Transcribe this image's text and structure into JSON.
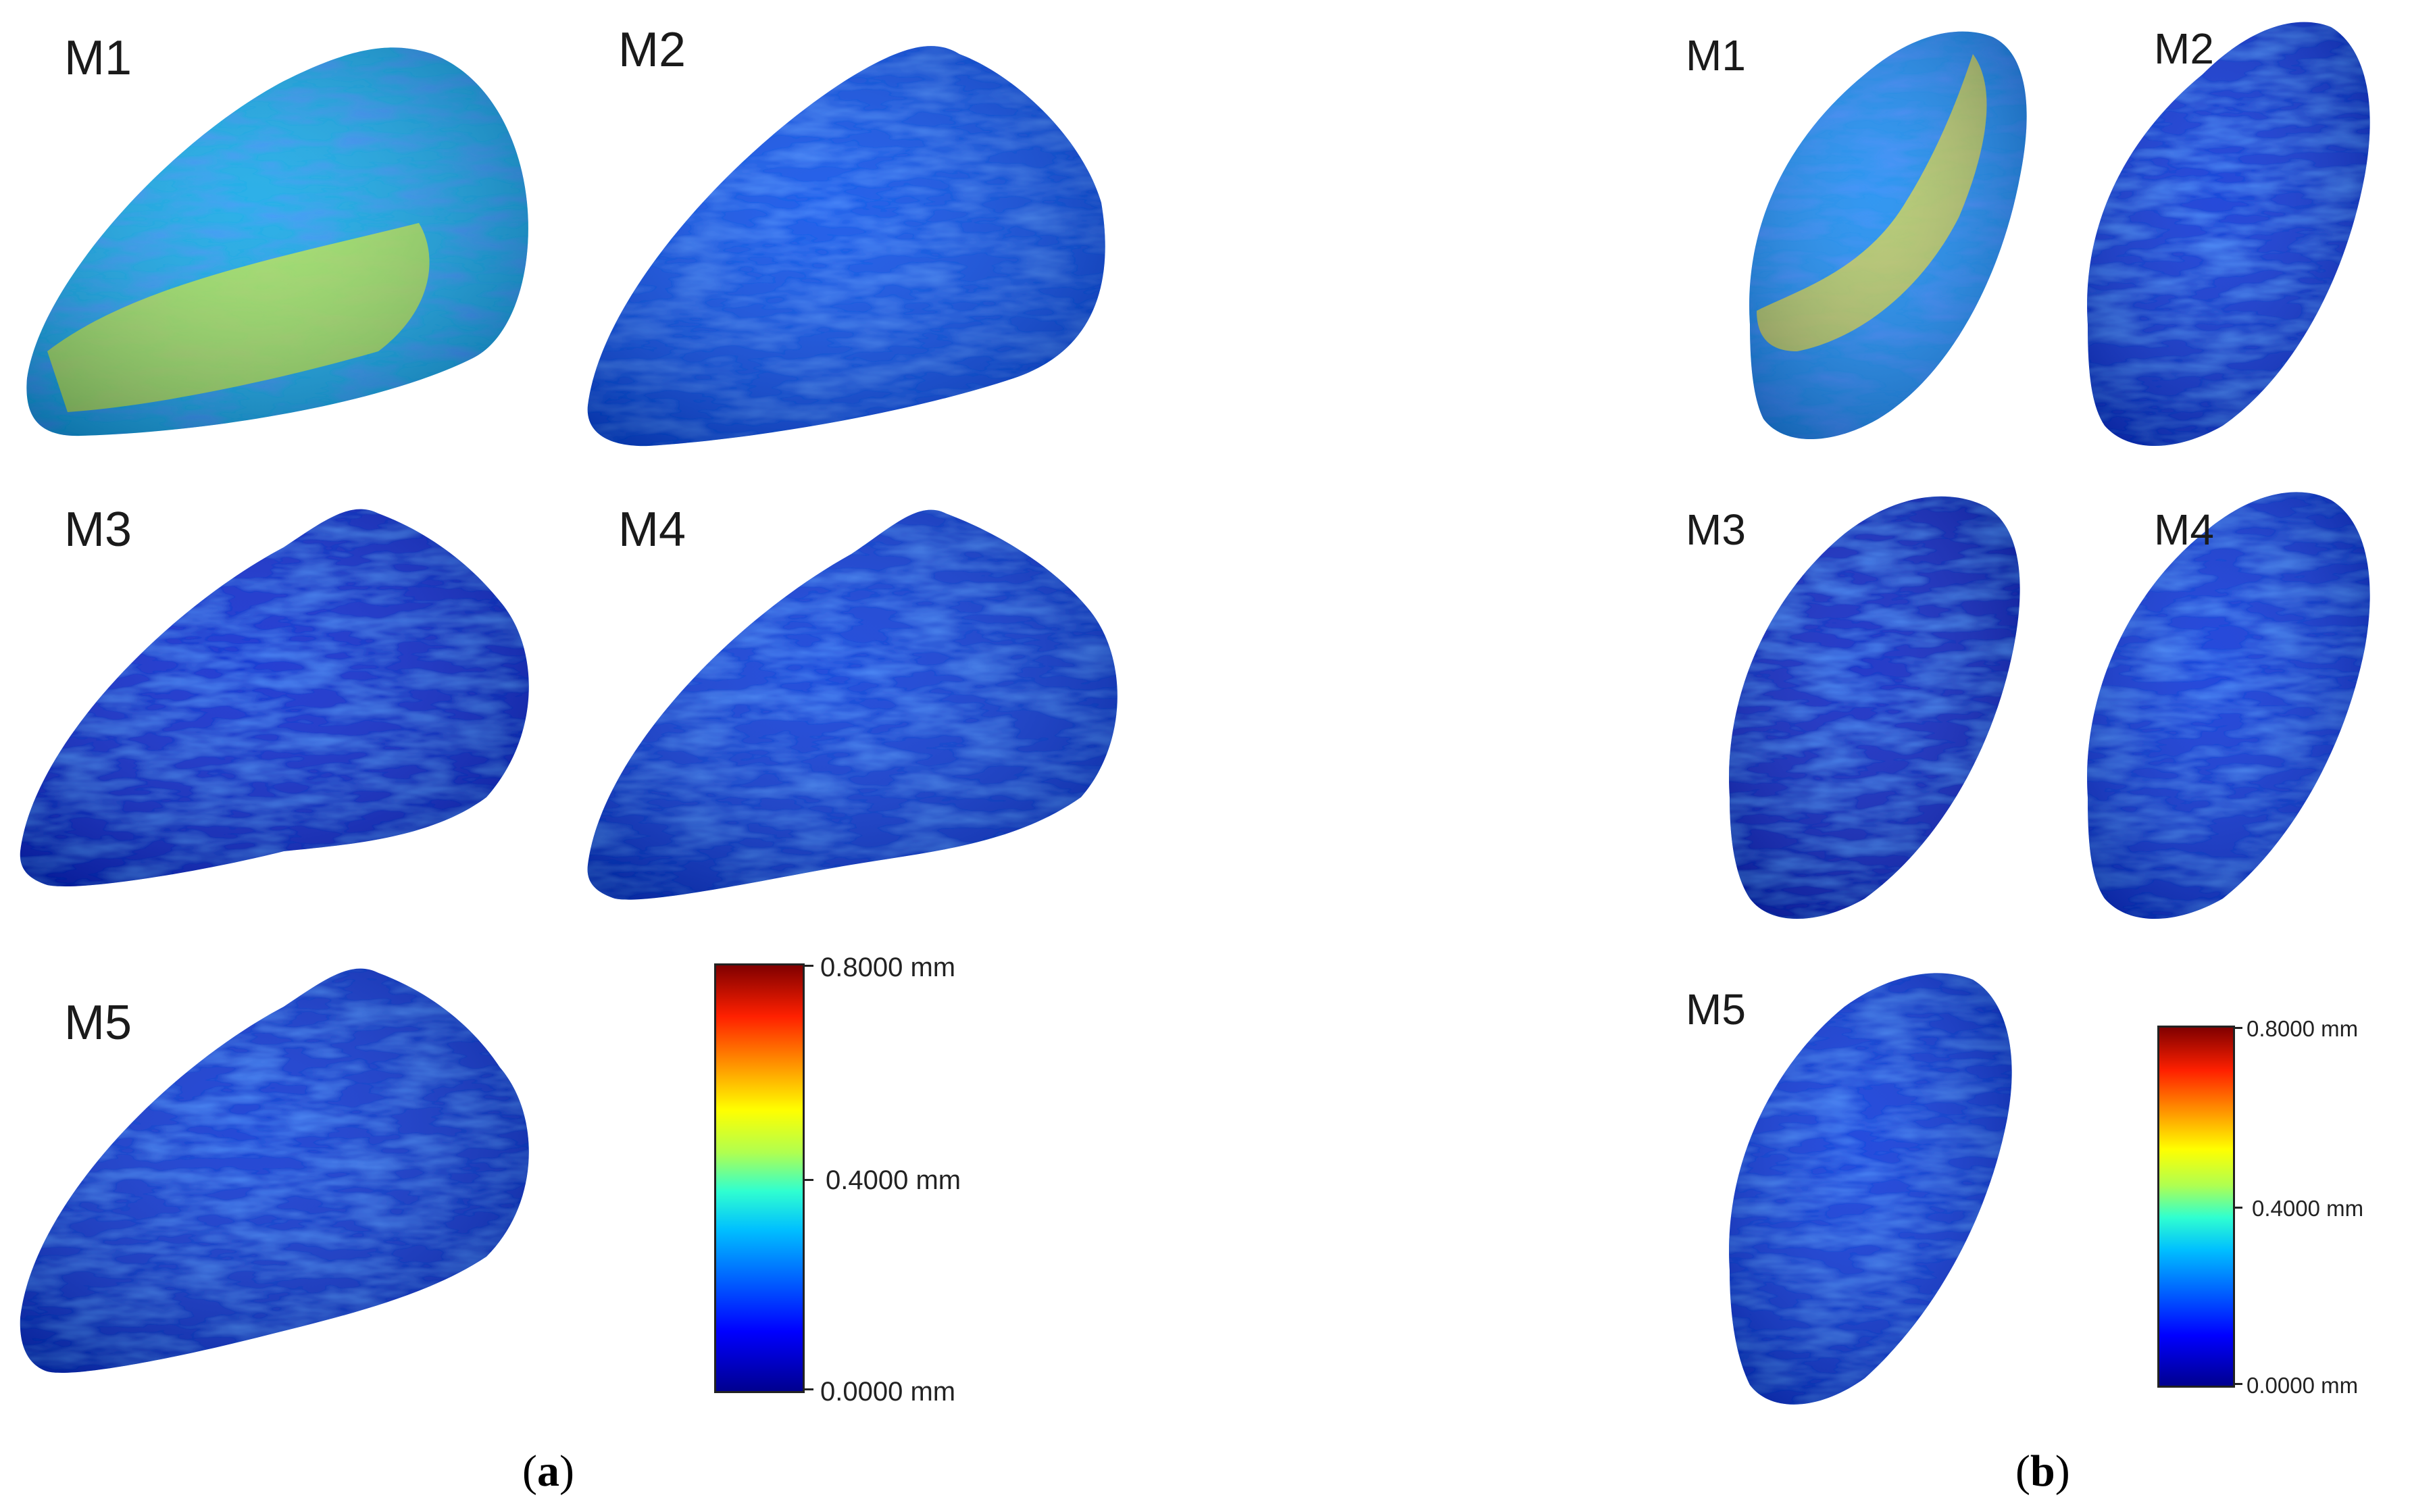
{
  "panel_a": {
    "caption_letter": "a",
    "models": [
      {
        "label": "M1",
        "color": "#19a8e6",
        "accent": "#c8f03a"
      },
      {
        "label": "M2",
        "color": "#1050e8",
        "accent": "#3ac8f0"
      },
      {
        "label": "M3",
        "color": "#0a2ccf",
        "accent": "#1e6cf0"
      },
      {
        "label": "M4",
        "color": "#0c3ad8",
        "accent": "#2a8cf4"
      },
      {
        "label": "M5",
        "color": "#0b34d2",
        "accent": "#2a86f2"
      }
    ],
    "scale": {
      "max": "0.8000 mm",
      "mid": "0.4000 mm",
      "min": "0.0000 mm"
    }
  },
  "panel_b": {
    "caption_letter": "b",
    "models": [
      {
        "label": "M1",
        "color": "#1a8cf0",
        "accent": "#f0e030"
      },
      {
        "label": "M2",
        "color": "#0a34d6",
        "accent": "#2a9af4"
      },
      {
        "label": "M3",
        "color": "#0828c4",
        "accent": "#1a60ee"
      },
      {
        "label": "M4",
        "color": "#0a36d8",
        "accent": "#2a90f4"
      },
      {
        "label": "M5",
        "color": "#0a38da",
        "accent": "#2a8ef4"
      }
    ],
    "scale": {
      "max": "0.8000 mm",
      "mid": "0.4000 mm",
      "min": "0.0000 mm"
    }
  },
  "colormap": [
    "#00008f",
    "#0000ff",
    "#0060ff",
    "#00c0ff",
    "#30ffd0",
    "#b0ff50",
    "#ffff00",
    "#ff9000",
    "#ff2000",
    "#800000"
  ]
}
